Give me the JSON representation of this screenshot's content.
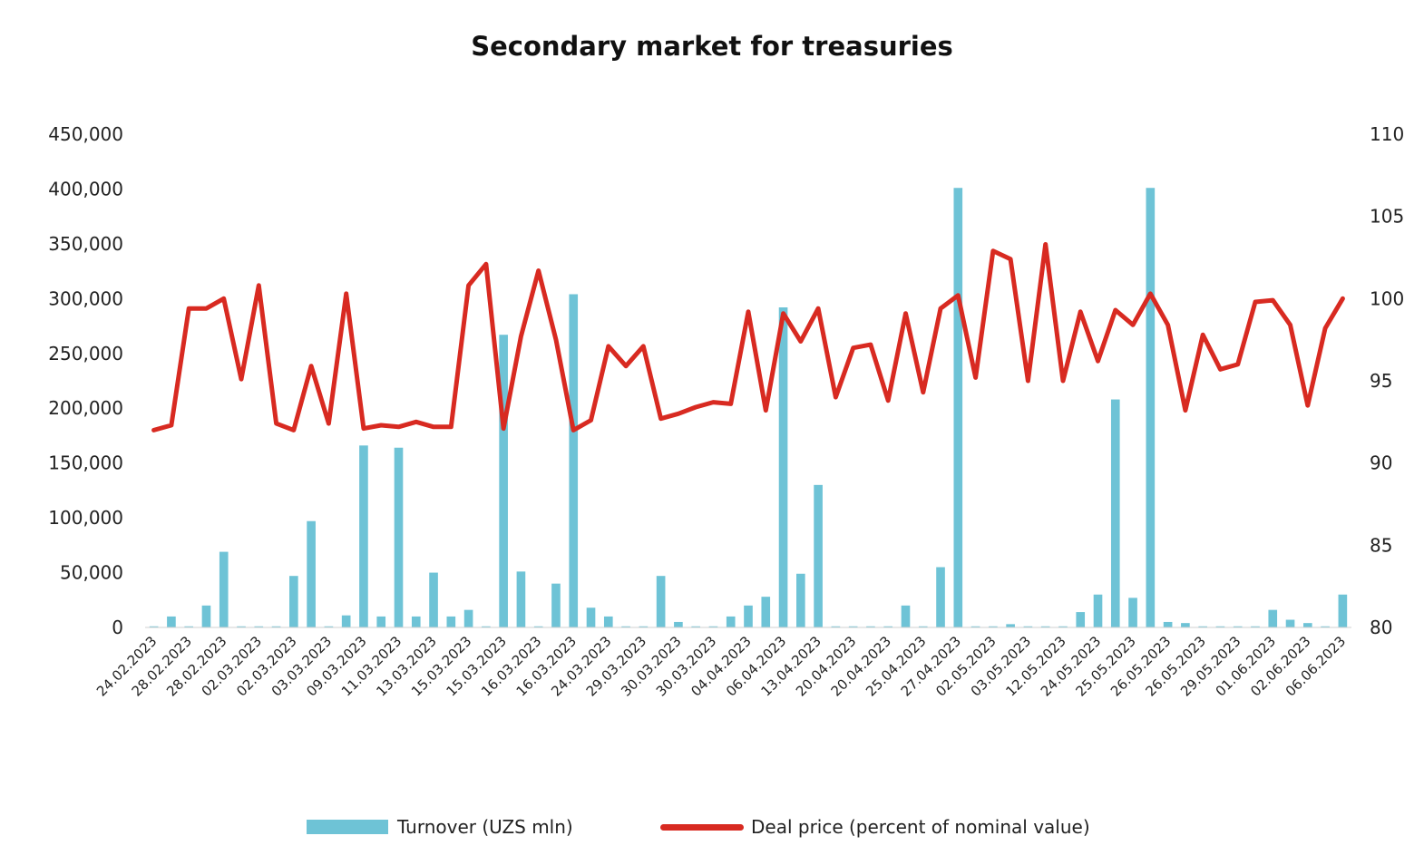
{
  "chart_data": {
    "type": "bar+line",
    "title": "Secondary market for treasuries",
    "colors": {
      "bar": "#6ec3d6",
      "line": "#d82a21"
    },
    "y_left": {
      "ticks": [
        0,
        50000,
        100000,
        150000,
        200000,
        250000,
        300000,
        350000,
        400000,
        450000
      ],
      "tick_labels": [
        "0",
        "50,000",
        "100,000",
        "150,000",
        "200,000",
        "250,000",
        "300,000",
        "350,000",
        "400,000",
        "450,000"
      ],
      "ylim": [
        0,
        450000
      ]
    },
    "y_right": {
      "ticks": [
        80,
        85,
        90,
        95,
        100,
        105,
        110
      ],
      "tick_labels": [
        "80",
        "85",
        "90",
        "95",
        "100",
        "105",
        "110"
      ],
      "ylim": [
        80,
        110
      ]
    },
    "x_tick_labels": [
      "24.02.2023",
      "28.02.2023",
      "28.02.2023",
      "02.03.2023",
      "02.03.2023",
      "03.03.2023",
      "09.03.2023",
      "11.03.2023",
      "13.03.2023",
      "15.03.2023",
      "15.03.2023",
      "16.03.2023",
      "16.03.2023",
      "24.03.2023",
      "29.03.2023",
      "30.03.2023",
      "30.03.2023",
      "04.04.2023",
      "06.04.2023",
      "13.04.2023",
      "20.04.2023",
      "20.04.2023",
      "25.04.2023",
      "27.04.2023",
      "02.05.2023",
      "03.05.2023",
      "12.05.2023",
      "24.05.2023",
      "25.05.2023",
      "26.05.2023",
      "26.05.2023",
      "29.05.2023",
      "01.06.2023",
      "02.06.2023",
      "06.06.2023"
    ],
    "label_every": 2,
    "series": [
      {
        "name": "Turnover (UZS mln)",
        "type": "bar",
        "axis": "left",
        "values": [
          1000,
          10000,
          1000,
          20000,
          69000,
          1000,
          1000,
          1000,
          47000,
          97000,
          1000,
          11000,
          166000,
          10000,
          164000,
          10000,
          50000,
          10000,
          16000,
          1000,
          267000,
          51000,
          1000,
          40000,
          304000,
          18000,
          10000,
          1000,
          1000,
          47000,
          5000,
          1000,
          1000,
          10000,
          20000,
          28000,
          292000,
          49000,
          130000,
          1000,
          1000,
          1000,
          1000,
          20000,
          1000,
          55000,
          401000,
          1000,
          1000,
          3000,
          1000,
          1000,
          1000,
          14000,
          30000,
          208000,
          27000,
          401000,
          5000,
          4000,
          1000,
          1000,
          1000,
          1000,
          16000,
          7000,
          4000,
          1000,
          30000
        ]
      },
      {
        "name": "Deal price (percent of nominal value)",
        "type": "line",
        "axis": "right",
        "values": [
          92.0,
          92.3,
          99.4,
          99.4,
          100.0,
          95.1,
          100.8,
          92.4,
          92.0,
          95.9,
          92.4,
          100.3,
          92.1,
          92.3,
          92.2,
          92.5,
          92.2,
          92.2,
          100.8,
          102.1,
          92.1,
          97.7,
          101.7,
          97.5,
          92.0,
          92.6,
          97.1,
          95.9,
          97.1,
          92.7,
          93.0,
          93.4,
          93.7,
          93.6,
          99.2,
          93.2,
          99.1,
          97.4,
          99.4,
          94.0,
          97.0,
          97.2,
          93.8,
          99.1,
          94.3,
          99.4,
          100.2,
          95.2,
          102.9,
          102.4,
          95.0,
          103.3,
          95.0,
          99.2,
          96.2,
          99.3,
          98.4,
          100.3,
          98.4,
          93.2,
          97.8,
          95.7,
          96.0,
          99.8,
          99.9,
          98.4,
          93.5,
          98.2,
          100.0
        ]
      }
    ],
    "legend_position": "bottom",
    "grid": false
  }
}
